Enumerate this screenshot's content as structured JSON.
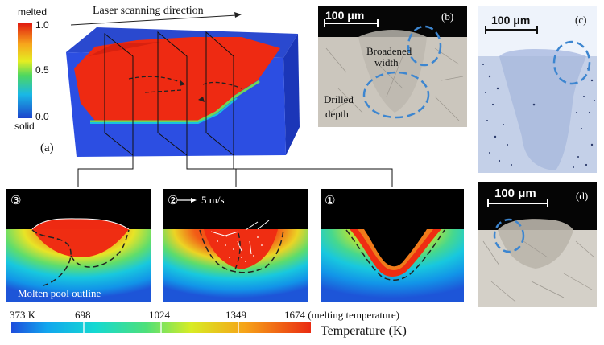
{
  "panel_a": {
    "colorbar_top_label": "melted",
    "colorbar_bottom_label": "solid",
    "colorbar_ticks": [
      "1.0",
      "0.5",
      "0.0"
    ],
    "direction_label": "Laser scanning direction",
    "panel_label": "(a)"
  },
  "panel_b": {
    "scale_label": "100 μm",
    "panel_label": "(b)",
    "annotation_1": "Broadened",
    "annotation_1b": "width",
    "annotation_2": "Drilled",
    "annotation_2b": "depth"
  },
  "panel_c": {
    "scale_label": "100 μm",
    "panel_label": "(c)"
  },
  "panel_d": {
    "scale_label": "100 μm",
    "panel_label": "(d)"
  },
  "sections": {
    "s3": {
      "marker": "③",
      "annotation": "Molten pool outline"
    },
    "s2": {
      "marker": "②",
      "velocity_label": "5 m/s"
    },
    "s1": {
      "marker": "①"
    }
  },
  "temperature_bar": {
    "ticks": [
      "373 K",
      "698",
      "1024",
      "1349",
      "1674 (melting temperature)"
    ],
    "title": "Temperature (K)"
  },
  "colors": {
    "melted": "#ee2a12",
    "solid": "#1a46c8",
    "background_black": "#000000",
    "outline_blue": "#3d86d0"
  }
}
